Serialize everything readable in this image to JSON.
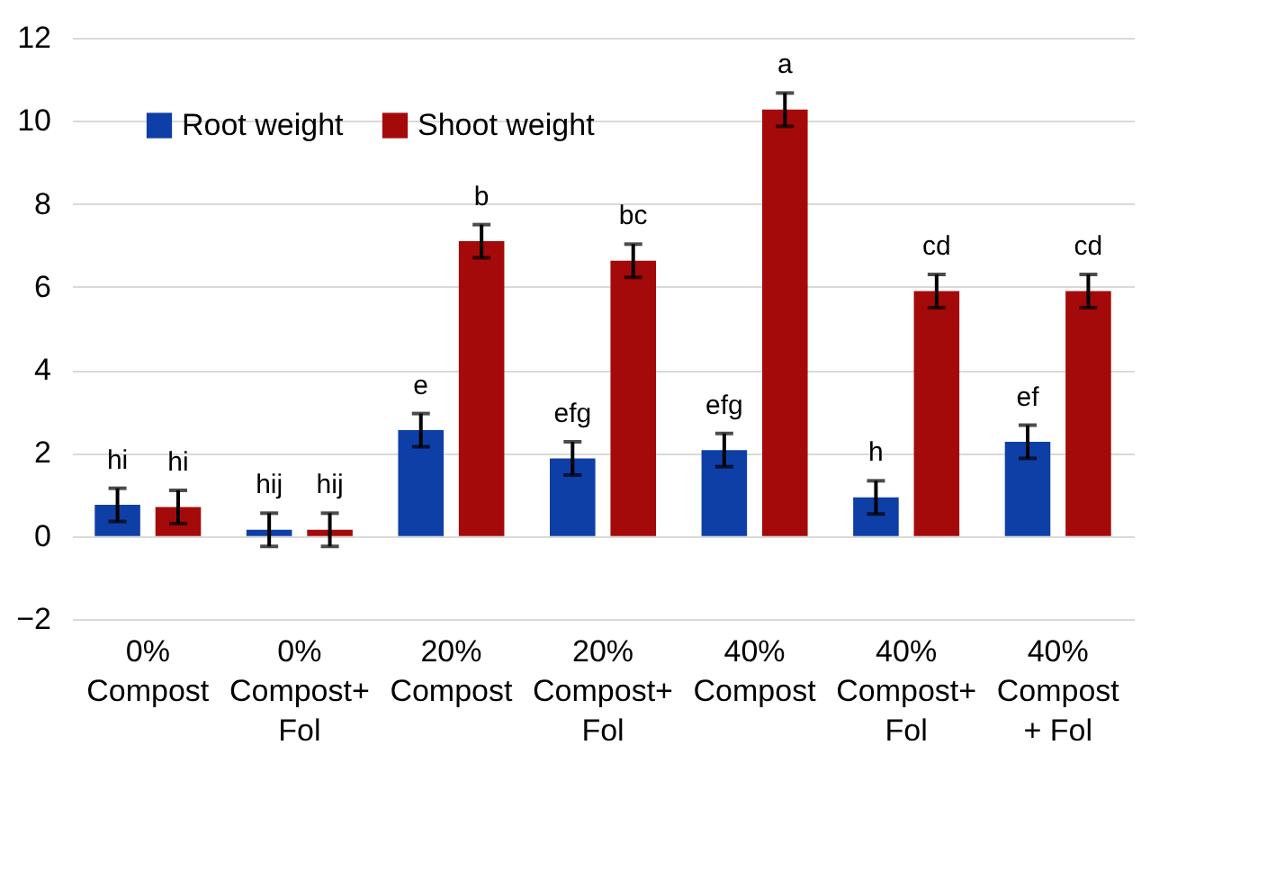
{
  "chart_data": {
    "type": "bar",
    "categories": [
      "0%\nCompost",
      "0%\nCompost+\nFol",
      "20%\nCompost",
      "20%\nCompost+\nFol",
      "40%\nCompost",
      "40%\nCompost+\nFol",
      "40%\nCompost\n+ Fol"
    ],
    "series": [
      {
        "name": "Root weight",
        "color": "#0e3fa6",
        "values": [
          0.75,
          0.15,
          2.55,
          1.87,
          2.07,
          0.93,
          2.27
        ],
        "errors": [
          0.4,
          0.4,
          0.4,
          0.4,
          0.4,
          0.4,
          0.4
        ],
        "value_labels": [
          "hi",
          "hij",
          "e",
          "efg",
          "efg",
          "h",
          "ef"
        ]
      },
      {
        "name": "Shoot weight",
        "color": "#a50a0a",
        "values": [
          0.7,
          0.15,
          7.1,
          6.63,
          10.27,
          5.9,
          5.9
        ],
        "errors": [
          0.4,
          0.4,
          0.4,
          0.4,
          0.4,
          0.4,
          0.4
        ],
        "value_labels": [
          "hi",
          "hij",
          "b",
          "bc",
          "a",
          "cd",
          "cd"
        ]
      }
    ],
    "ylim": [
      -2,
      12
    ],
    "yticks": [
      -2,
      0,
      2,
      4,
      6,
      8,
      10,
      12
    ],
    "grid": "y",
    "legend": "top left"
  }
}
